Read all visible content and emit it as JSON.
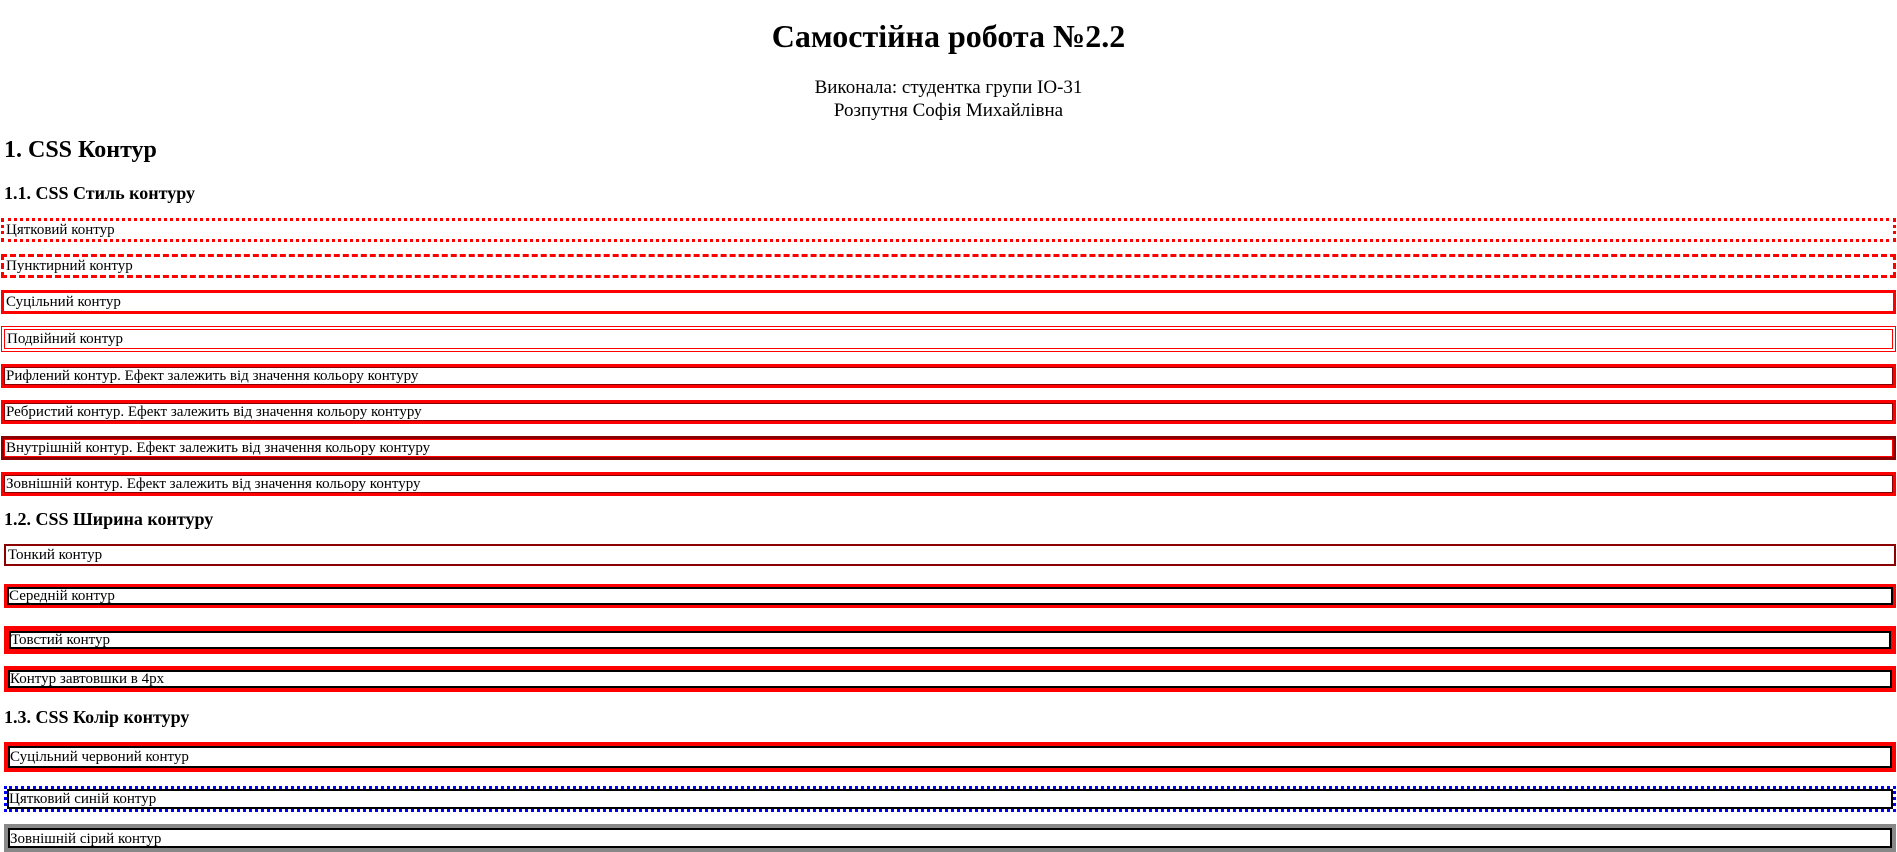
{
  "title": "Самостійна робота №2.2",
  "author": {
    "line1": "Виконала: студентка групи ІО-31",
    "line2": "Розпутня Софія Михайлівна"
  },
  "section1": {
    "heading": "1. CSS Контур",
    "style": {
      "heading": "1.1. CSS Стиль контуру",
      "items": [
        "Цятковий контур",
        "Пунктирний контур",
        "Суцільний контур",
        "Подвійний контур",
        "Рифлений контур. Ефект залежить від значення кольору контуру",
        "Ребристий контур. Ефект залежить від значення кольору контуру",
        "Внутрішній контур. Ефект залежить від значення кольору контуру",
        "Зовнішній контур. Ефект залежить від значення кольору контуру"
      ]
    },
    "width": {
      "heading": "1.2. CSS Ширина контуру",
      "items": [
        "Тонкий контур",
        "Середній контур",
        "Товстий контур",
        "Контур завтовшки в 4px"
      ]
    },
    "color": {
      "heading": "1.3. CSS Колір контуру",
      "items": [
        "Суцільний червоний контур",
        "Цятковий синій контур",
        "Зовнішній сірий контур"
      ]
    }
  }
}
